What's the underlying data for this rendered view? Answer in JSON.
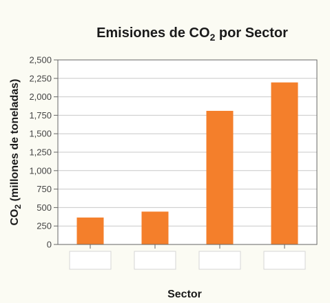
{
  "chart_data": {
    "type": "bar",
    "title": "Emisiones de CO",
    "title_subscript": "2",
    "title_suffix": " por Sector",
    "xlabel": "Sector",
    "ylabel_prefix": "CO",
    "ylabel_subscript": "2",
    "ylabel_suffix": " (millones de toneladas)",
    "categories": [
      "",
      "",
      "",
      ""
    ],
    "values": [
      365,
      445,
      1810,
      2195
    ],
    "ylim": [
      0,
      2500
    ],
    "yticks": [
      0,
      250,
      500,
      750,
      1000,
      1250,
      1500,
      1750,
      2000,
      2250,
      2500
    ],
    "ytick_labels": [
      "0",
      "250",
      "500",
      "750",
      "1,000",
      "1,250",
      "1,500",
      "1,750",
      "2,000",
      "2,250",
      "2,500"
    ],
    "grid": true,
    "bar_color": "#f47f2b",
    "grid_color": "#c8c8c8",
    "axis_color": "#666666"
  }
}
